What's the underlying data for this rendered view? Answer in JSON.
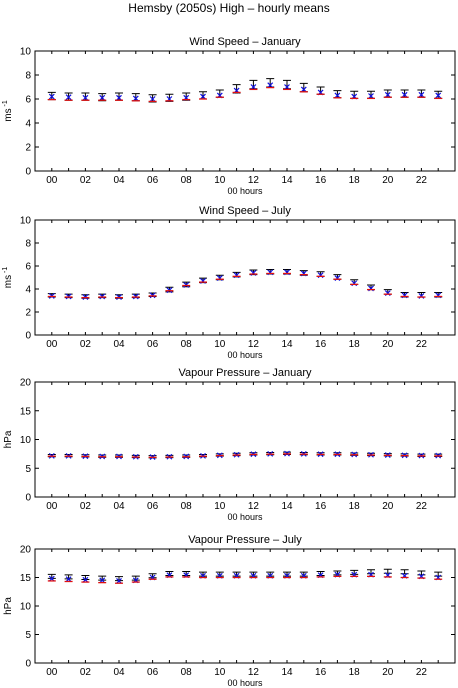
{
  "figure_title": "Hemsby (2050s) High – hourly means",
  "chart_data": [
    {
      "type": "scatter",
      "title": "Wind Speed – January",
      "xlabel": "00 hours",
      "ylabel": "ms",
      "ylabel_sup": "-1",
      "ylim": [
        0,
        10
      ],
      "yticks": [
        0,
        2,
        4,
        6,
        8,
        10
      ],
      "xlim": [
        -1,
        24
      ],
      "xticks": [
        "00",
        "02",
        "04",
        "06",
        "08",
        "10",
        "12",
        "14",
        "16",
        "18",
        "20",
        "22"
      ],
      "grid": false,
      "x": [
        0,
        1,
        2,
        3,
        4,
        5,
        6,
        7,
        8,
        9,
        10,
        11,
        12,
        13,
        14,
        15,
        16,
        17,
        18,
        19,
        20,
        21,
        22,
        23
      ],
      "series": [
        {
          "marker": "errorbar",
          "color": "#000000",
          "values": [
            6.25,
            6.2,
            6.2,
            6.15,
            6.2,
            6.15,
            6.05,
            6.1,
            6.2,
            6.3,
            6.45,
            6.85,
            7.2,
            7.35,
            7.2,
            6.95,
            6.7,
            6.4,
            6.35,
            6.35,
            6.45,
            6.45,
            6.45,
            6.35
          ],
          "err": [
            0.3,
            0.3,
            0.3,
            0.3,
            0.3,
            0.3,
            0.3,
            0.3,
            0.3,
            0.3,
            0.3,
            0.35,
            0.35,
            0.35,
            0.35,
            0.35,
            0.3,
            0.3,
            0.3,
            0.3,
            0.3,
            0.3,
            0.3,
            0.3
          ]
        },
        {
          "marker": "x",
          "color": "#1010e0",
          "values": [
            6.2,
            6.15,
            6.1,
            6.1,
            6.1,
            6.05,
            6.0,
            6.0,
            6.1,
            6.2,
            6.3,
            6.7,
            7.0,
            7.15,
            7.0,
            6.8,
            6.55,
            6.3,
            6.2,
            6.25,
            6.35,
            6.35,
            6.35,
            6.3
          ]
        },
        {
          "marker": "tick",
          "color": "#e01010",
          "values": [
            5.95,
            5.9,
            5.9,
            5.9,
            5.9,
            5.85,
            5.8,
            5.85,
            5.95,
            6.0,
            6.15,
            6.55,
            6.8,
            6.95,
            6.8,
            6.6,
            6.4,
            6.1,
            6.05,
            6.05,
            6.15,
            6.15,
            6.15,
            6.05
          ]
        }
      ]
    },
    {
      "type": "scatter",
      "title": "Wind Speed – July",
      "xlabel": "00 hours",
      "ylabel": "ms",
      "ylabel_sup": "-1",
      "ylim": [
        0,
        10
      ],
      "yticks": [
        0,
        2,
        4,
        6,
        8,
        10
      ],
      "xlim": [
        -1,
        24
      ],
      "xticks": [
        "00",
        "02",
        "04",
        "06",
        "08",
        "10",
        "12",
        "14",
        "16",
        "18",
        "20",
        "22"
      ],
      "grid": false,
      "x": [
        0,
        1,
        2,
        3,
        4,
        5,
        6,
        7,
        8,
        9,
        10,
        11,
        12,
        13,
        14,
        15,
        16,
        17,
        18,
        19,
        20,
        21,
        22,
        23
      ],
      "series": [
        {
          "marker": "errorbar",
          "color": "#000000",
          "values": [
            3.45,
            3.4,
            3.35,
            3.4,
            3.35,
            3.4,
            3.5,
            3.95,
            4.4,
            4.75,
            5.0,
            5.25,
            5.45,
            5.5,
            5.5,
            5.4,
            5.3,
            5.05,
            4.6,
            4.15,
            3.75,
            3.5,
            3.5,
            3.5
          ],
          "err": [
            0.15,
            0.15,
            0.15,
            0.15,
            0.15,
            0.15,
            0.15,
            0.2,
            0.2,
            0.2,
            0.2,
            0.2,
            0.2,
            0.2,
            0.2,
            0.2,
            0.2,
            0.2,
            0.2,
            0.2,
            0.2,
            0.2,
            0.2,
            0.2
          ]
        },
        {
          "marker": "x",
          "color": "#1010e0",
          "values": [
            3.4,
            3.35,
            3.3,
            3.35,
            3.3,
            3.35,
            3.45,
            3.9,
            4.35,
            4.7,
            4.95,
            5.2,
            5.4,
            5.45,
            5.45,
            5.35,
            5.2,
            4.95,
            4.5,
            4.05,
            3.65,
            3.45,
            3.4,
            3.45
          ]
        },
        {
          "marker": "tick",
          "color": "#e01010",
          "values": [
            3.35,
            3.3,
            3.25,
            3.3,
            3.25,
            3.3,
            3.4,
            3.85,
            4.3,
            4.6,
            4.85,
            5.1,
            5.3,
            5.35,
            5.35,
            5.25,
            5.1,
            4.85,
            4.4,
            3.95,
            3.55,
            3.35,
            3.3,
            3.35
          ]
        }
      ]
    },
    {
      "type": "scatter",
      "title": "Vapour Pressure – January",
      "xlabel": "00 hours",
      "ylabel": "hPa",
      "ylabel_sup": "",
      "ylim": [
        0,
        20
      ],
      "yticks": [
        0,
        5,
        10,
        15,
        20
      ],
      "xlim": [
        -1,
        24
      ],
      "xticks": [
        "00",
        "02",
        "04",
        "06",
        "08",
        "10",
        "12",
        "14",
        "16",
        "18",
        "20",
        "22"
      ],
      "grid": false,
      "x": [
        0,
        1,
        2,
        3,
        4,
        5,
        6,
        7,
        8,
        9,
        10,
        11,
        12,
        13,
        14,
        15,
        16,
        17,
        18,
        19,
        20,
        21,
        22,
        23
      ],
      "series": [
        {
          "marker": "errorbar",
          "color": "#000000",
          "values": [
            7.2,
            7.2,
            7.15,
            7.1,
            7.1,
            7.05,
            7.0,
            7.05,
            7.1,
            7.2,
            7.3,
            7.4,
            7.5,
            7.55,
            7.6,
            7.55,
            7.5,
            7.5,
            7.45,
            7.4,
            7.35,
            7.3,
            7.25,
            7.25
          ],
          "err": [
            0.2,
            0.2,
            0.2,
            0.2,
            0.2,
            0.2,
            0.2,
            0.2,
            0.2,
            0.2,
            0.2,
            0.2,
            0.2,
            0.2,
            0.2,
            0.2,
            0.2,
            0.2,
            0.2,
            0.2,
            0.2,
            0.2,
            0.2,
            0.2
          ]
        },
        {
          "marker": "x",
          "color": "#1010e0",
          "values": [
            7.15,
            7.15,
            7.1,
            7.05,
            7.05,
            7.0,
            6.95,
            7.0,
            7.05,
            7.15,
            7.25,
            7.35,
            7.45,
            7.5,
            7.55,
            7.5,
            7.45,
            7.45,
            7.4,
            7.35,
            7.3,
            7.25,
            7.2,
            7.2
          ]
        },
        {
          "marker": "tick",
          "color": "#e01010",
          "values": [
            7.1,
            7.1,
            7.05,
            7.0,
            7.0,
            6.95,
            6.9,
            6.95,
            7.0,
            7.1,
            7.2,
            7.3,
            7.4,
            7.45,
            7.5,
            7.45,
            7.4,
            7.4,
            7.35,
            7.3,
            7.25,
            7.2,
            7.15,
            7.15
          ]
        }
      ]
    },
    {
      "type": "scatter",
      "title": "Vapour Pressure – July",
      "xlabel": "00 hours",
      "ylabel": "hPa",
      "ylabel_sup": "",
      "ylim": [
        0,
        20
      ],
      "yticks": [
        0,
        5,
        10,
        15,
        20
      ],
      "xlim": [
        -1,
        24
      ],
      "xticks": [
        "00",
        "02",
        "04",
        "06",
        "08",
        "10",
        "12",
        "14",
        "16",
        "18",
        "20",
        "22"
      ],
      "grid": false,
      "x": [
        0,
        1,
        2,
        3,
        4,
        5,
        6,
        7,
        8,
        9,
        10,
        11,
        12,
        13,
        14,
        15,
        16,
        17,
        18,
        19,
        20,
        21,
        22,
        23
      ],
      "series": [
        {
          "marker": "errorbar",
          "color": "#000000",
          "values": [
            15.2,
            15.1,
            15.0,
            14.9,
            14.8,
            14.9,
            15.3,
            15.7,
            15.7,
            15.6,
            15.6,
            15.6,
            15.6,
            15.6,
            15.6,
            15.6,
            15.7,
            15.8,
            15.9,
            16.0,
            16.1,
            16.0,
            15.8,
            15.6
          ],
          "err": [
            0.35,
            0.35,
            0.35,
            0.35,
            0.35,
            0.35,
            0.35,
            0.35,
            0.35,
            0.35,
            0.35,
            0.35,
            0.35,
            0.35,
            0.35,
            0.35,
            0.35,
            0.35,
            0.35,
            0.35,
            0.35,
            0.35,
            0.35,
            0.35
          ]
        },
        {
          "marker": "x",
          "color": "#1010e0",
          "values": [
            14.8,
            14.7,
            14.6,
            14.5,
            14.4,
            14.5,
            15.0,
            15.4,
            15.4,
            15.3,
            15.3,
            15.3,
            15.3,
            15.3,
            15.3,
            15.3,
            15.4,
            15.5,
            15.5,
            15.5,
            15.4,
            15.3,
            15.2,
            15.0
          ]
        },
        {
          "marker": "tick",
          "color": "#e01010",
          "values": [
            14.4,
            14.3,
            14.2,
            14.1,
            14.0,
            14.2,
            14.7,
            15.1,
            15.1,
            15.0,
            15.0,
            15.0,
            15.0,
            15.0,
            15.0,
            15.0,
            15.1,
            15.2,
            15.2,
            15.2,
            15.1,
            15.0,
            14.9,
            14.7
          ]
        }
      ]
    }
  ]
}
